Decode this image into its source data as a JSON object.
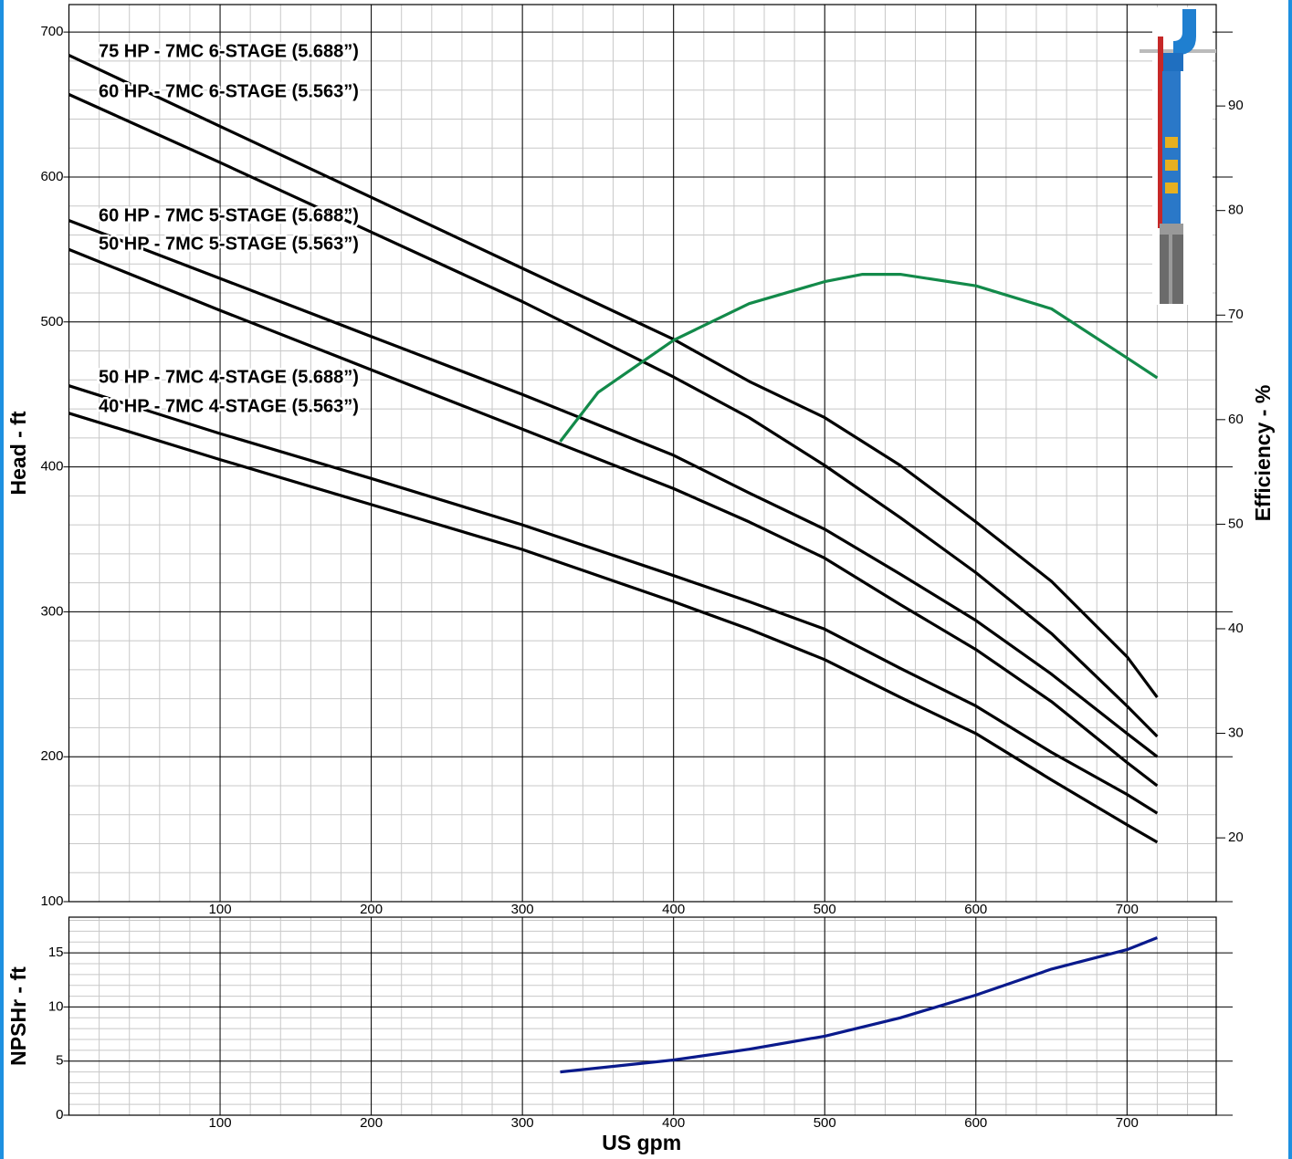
{
  "chart_data": [
    {
      "type": "line",
      "y_label": "Head - ft",
      "y2_label": "Efficiency - %",
      "xlim": [
        0,
        759
      ],
      "xticks": [
        100,
        200,
        300,
        400,
        500,
        600,
        700
      ],
      "ylim": [
        100,
        719
      ],
      "yticks": [
        100,
        200,
        300,
        400,
        500,
        600,
        700
      ],
      "y2lim": [
        13.9,
        99.7
      ],
      "y2ticks": [
        20,
        30,
        40,
        50,
        60,
        70,
        80,
        90
      ],
      "grid": true,
      "series": [
        {
          "name": "75 HP - 7MC 6-STAGE (5.688”)",
          "color": "#000000",
          "x": [
            0,
            100,
            200,
            300,
            400,
            450,
            500,
            550,
            600,
            650,
            700,
            720
          ],
          "values": [
            684,
            635,
            586,
            537,
            488,
            459,
            434,
            401,
            362,
            321,
            269,
            241
          ]
        },
        {
          "name": "60 HP - 7MC 6-STAGE (5.563”)",
          "color": "#000000",
          "x": [
            0,
            100,
            200,
            300,
            400,
            450,
            500,
            550,
            600,
            650,
            700,
            720
          ],
          "values": [
            657,
            610,
            562,
            514,
            462,
            434,
            401,
            365,
            327,
            285,
            235,
            214
          ]
        },
        {
          "name": "60 HP - 7MC 5-STAGE (5.688”)",
          "color": "#000000",
          "x": [
            0,
            100,
            200,
            300,
            400,
            450,
            500,
            550,
            600,
            650,
            700,
            720
          ],
          "values": [
            570,
            530,
            490,
            450,
            408,
            382,
            357,
            326,
            294,
            257,
            216,
            200
          ]
        },
        {
          "name": "50 HP - 7MC 5-STAGE (5.563”)",
          "color": "#000000",
          "x": [
            0,
            100,
            200,
            300,
            400,
            450,
            500,
            550,
            600,
            650,
            700,
            720
          ],
          "values": [
            550,
            508,
            467,
            426,
            385,
            362,
            337,
            305,
            274,
            238,
            196,
            180
          ]
        },
        {
          "name": "50 HP - 7MC 4-STAGE (5.688”)",
          "color": "#000000",
          "x": [
            0,
            100,
            200,
            300,
            400,
            450,
            500,
            550,
            600,
            650,
            700,
            720
          ],
          "values": [
            456,
            423,
            392,
            360,
            325,
            307,
            288,
            261,
            235,
            203,
            174,
            161
          ]
        },
        {
          "name": "40 HP - 7MC 4-STAGE (5.563”)",
          "color": "#000000",
          "x": [
            0,
            100,
            200,
            300,
            400,
            450,
            500,
            550,
            600,
            650,
            700,
            720
          ],
          "values": [
            437,
            405,
            374,
            343,
            307,
            288,
            267,
            241,
            216,
            184,
            153,
            141
          ]
        },
        {
          "color": "#138a4a",
          "axis": "y2",
          "x": [
            325,
            350,
            400,
            450,
            500,
            525,
            550,
            600,
            650,
            700,
            720
          ],
          "values": [
            57.9,
            62.6,
            67.6,
            71.1,
            73.2,
            73.9,
            73.9,
            72.8,
            70.6,
            65.9,
            64.0
          ]
        }
      ]
    },
    {
      "type": "line",
      "y_label": "NPSHr - ft",
      "x_label": "US gpm",
      "xlim": [
        0,
        759
      ],
      "xticks": [
        100,
        200,
        300,
        400,
        500,
        600,
        700
      ],
      "ylim": [
        0,
        18.3
      ],
      "yticks": [
        0,
        5,
        10,
        15
      ],
      "grid": true,
      "series": [
        {
          "color": "#0a1a8c",
          "x": [
            325,
            400,
            450,
            500,
            550,
            600,
            650,
            700,
            720
          ],
          "values": [
            4.0,
            5.1,
            6.1,
            7.3,
            9.0,
            11.1,
            13.5,
            15.3,
            16.4
          ]
        }
      ]
    }
  ]
}
